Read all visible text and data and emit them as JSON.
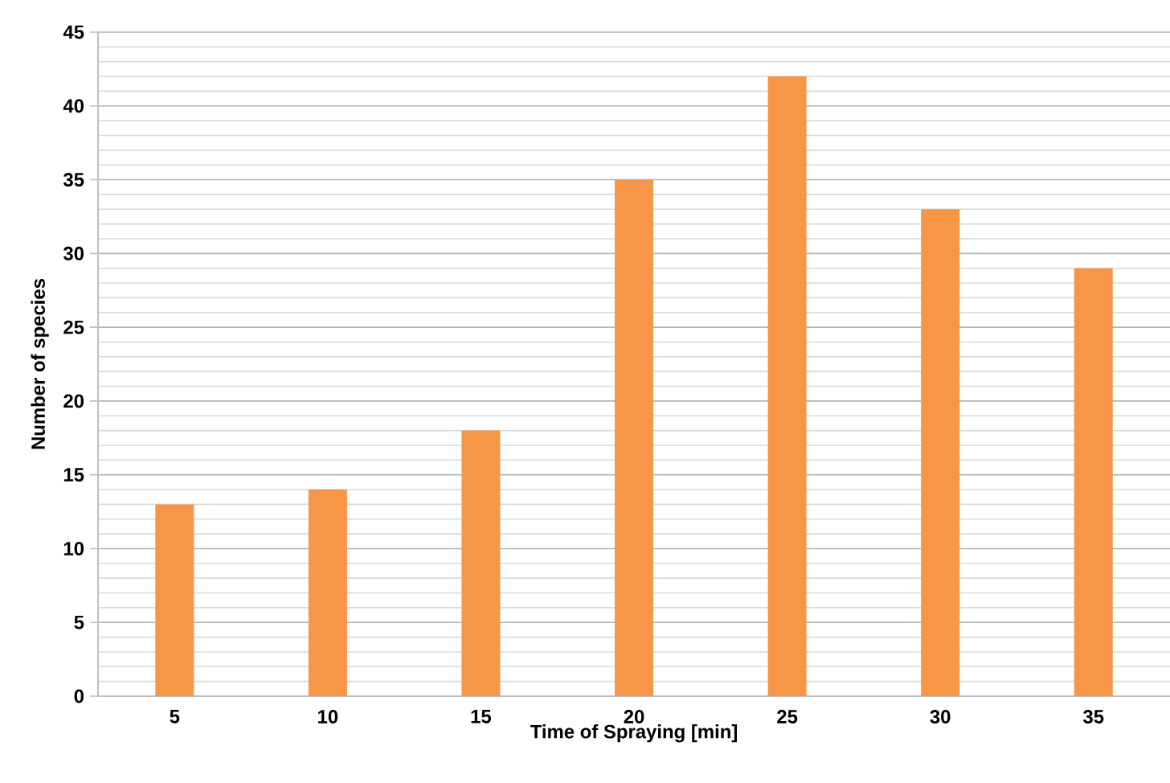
{
  "chart_data": {
    "type": "bar",
    "xlabel": "Time of Spraying  [min]",
    "ylabel": "Number of species",
    "categories": [
      "5",
      "10",
      "15",
      "20",
      "25",
      "30",
      "35"
    ],
    "values": [
      13,
      14,
      18,
      35,
      42,
      33,
      29
    ],
    "color": "#f79646",
    "ylim": [
      0,
      45
    ],
    "yticks": [
      0,
      5,
      10,
      15,
      20,
      25,
      30,
      35,
      40,
      45
    ],
    "grid": "y"
  }
}
